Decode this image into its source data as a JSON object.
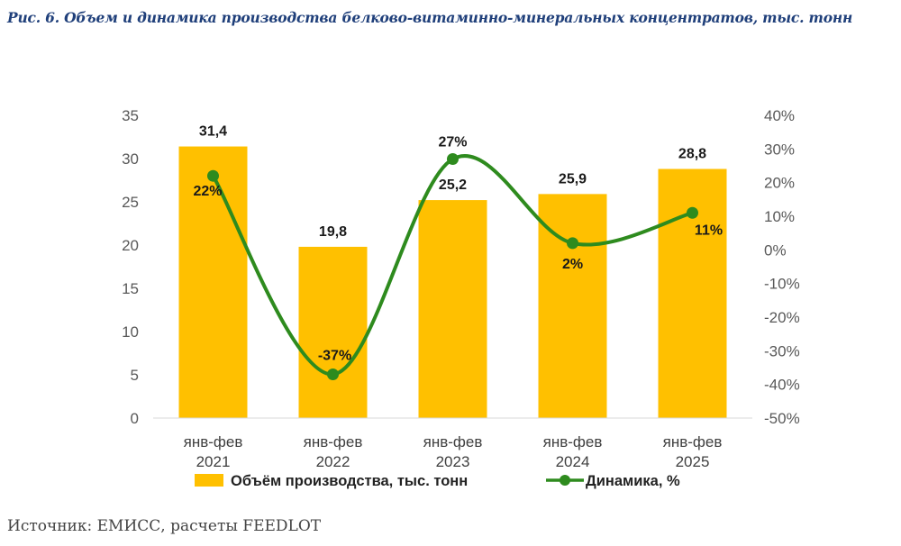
{
  "title": "Рис. 6. Объем и динамика производства белково-витаминно-минеральных концентратов, тыс. тонн",
  "source": "Источник: ЕМИСС, расчеты FEEDLOT",
  "chart_data": {
    "type": "bar+line",
    "categories": [
      [
        "янв-фев",
        "2021"
      ],
      [
        "янв-фев",
        "2022"
      ],
      [
        "янв-фев",
        "2023"
      ],
      [
        "янв-фев",
        "2024"
      ],
      [
        "янв-фев",
        "2025"
      ]
    ],
    "series": [
      {
        "name": "Объём производства, тыс. тонн",
        "type": "bar",
        "axis": "left",
        "values": [
          31.4,
          19.8,
          25.2,
          25.9,
          28.8
        ],
        "labels": [
          "31,4",
          "19,8",
          "25,2",
          "25,9",
          "28,8"
        ],
        "color": "#FFC000"
      },
      {
        "name": "Динамика, %",
        "type": "line",
        "axis": "right",
        "values": [
          22,
          -37,
          27,
          2,
          11
        ],
        "labels": [
          "22%",
          "-37%",
          "27%",
          "2%",
          "11%"
        ],
        "color": "#2E8B1E"
      }
    ],
    "left_axis": {
      "min": 0,
      "max": 35,
      "step": 5,
      "tick_labels": [
        "0",
        "5",
        "10",
        "15",
        "20",
        "25",
        "30",
        "35"
      ]
    },
    "right_axis": {
      "min": -50,
      "max": 40,
      "step": 10,
      "tick_labels": [
        "-50%",
        "-40%",
        "-30%",
        "-20%",
        "-10%",
        "0%",
        "10%",
        "20%",
        "30%",
        "40%"
      ]
    },
    "legend_position": "bottom"
  }
}
